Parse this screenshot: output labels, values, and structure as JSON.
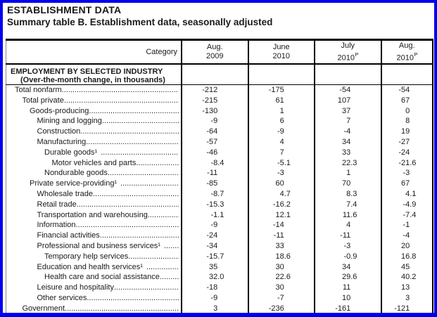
{
  "page": {
    "title_line1": "ESTABLISHMENT DATA",
    "title_line2": "Summary table B. Establishment data, seasonally adjusted"
  },
  "colors": {
    "frame_border": "#0000f0",
    "rule": "#000000",
    "text": "#1a1a1a"
  },
  "table": {
    "category_header": "Category",
    "columns": [
      {
        "month": "Aug.",
        "year": "2009",
        "sup": ""
      },
      {
        "month": "June",
        "year": "2010",
        "sup": ""
      },
      {
        "month": "July",
        "year": "2010",
        "sup": "P"
      },
      {
        "month": "Aug.",
        "year": "2010",
        "sup": "P"
      }
    ],
    "section_line1": "EMPLOYMENT BY SELECTED INDUSTRY",
    "section_line2": "(Over-the-month change, in thousands)",
    "rows": [
      {
        "label": "Total nonfarm",
        "indent": 0,
        "values": [
          "-212",
          "-175",
          "-54",
          "-54"
        ]
      },
      {
        "label": "Total private",
        "indent": 1,
        "values": [
          "-215",
          "61",
          "107",
          "67"
        ]
      },
      {
        "label": "Goods-producing",
        "indent": 2,
        "values": [
          "-130",
          "1",
          "37",
          "0"
        ]
      },
      {
        "label": "Mining and logging",
        "indent": 3,
        "values": [
          "-9",
          "6",
          "7",
          "8"
        ]
      },
      {
        "label": "Construction",
        "indent": 3,
        "values": [
          "-64",
          "-9",
          "-4",
          "19"
        ]
      },
      {
        "label": "Manufacturing",
        "indent": 3,
        "values": [
          "-57",
          "4",
          "34",
          "-27"
        ]
      },
      {
        "label": "Durable goods¹",
        "indent": 4,
        "values": [
          "-46",
          "7",
          "33",
          "-24"
        ]
      },
      {
        "label": "Motor vehicles and parts",
        "indent": 5,
        "values": [
          "-8.4",
          "-5.1",
          "22.3",
          "-21.6"
        ]
      },
      {
        "label": "Nondurable goods",
        "indent": 4,
        "values": [
          "-11",
          "-3",
          "1",
          "-3"
        ]
      },
      {
        "label": "Private service-providing¹",
        "indent": 2,
        "values": [
          "-85",
          "60",
          "70",
          "67"
        ]
      },
      {
        "label": "Wholesale trade",
        "indent": 3,
        "values": [
          "-8.7",
          "4.7",
          "8.3",
          "4.1"
        ]
      },
      {
        "label": "Retail trade",
        "indent": 3,
        "values": [
          "-15.3",
          "-16.2",
          "7.4",
          "-4.9"
        ]
      },
      {
        "label": "Transportation and warehousing",
        "indent": 3,
        "values": [
          "-1.1",
          "12.1",
          "11.6",
          "-7.4"
        ]
      },
      {
        "label": "Information",
        "indent": 3,
        "values": [
          "-9",
          "-14",
          "4",
          "-1"
        ]
      },
      {
        "label": "Financial activities",
        "indent": 3,
        "values": [
          "-24",
          "-11",
          "-11",
          "-4"
        ]
      },
      {
        "label": "Professional and business services¹",
        "indent": 3,
        "values": [
          "-34",
          "33",
          "-3",
          "20"
        ]
      },
      {
        "label": "Temporary help services",
        "indent": 4,
        "values": [
          "-15.7",
          "18.6",
          "-0.9",
          "16.8"
        ]
      },
      {
        "label": "Education and health services¹",
        "indent": 3,
        "values": [
          "35",
          "30",
          "34",
          "45"
        ]
      },
      {
        "label": "Health care and social assistance",
        "indent": 4,
        "values": [
          "32.0",
          "22.6",
          "29.6",
          "40.2"
        ]
      },
      {
        "label": "Leisure and hospitality",
        "indent": 3,
        "values": [
          "-18",
          "30",
          "11",
          "13"
        ]
      },
      {
        "label": "Other services",
        "indent": 3,
        "values": [
          "-9",
          "-7",
          "10",
          "3"
        ]
      },
      {
        "label": "Government",
        "indent": 1,
        "values": [
          "3",
          "-236",
          "-161",
          "-121"
        ]
      }
    ]
  }
}
